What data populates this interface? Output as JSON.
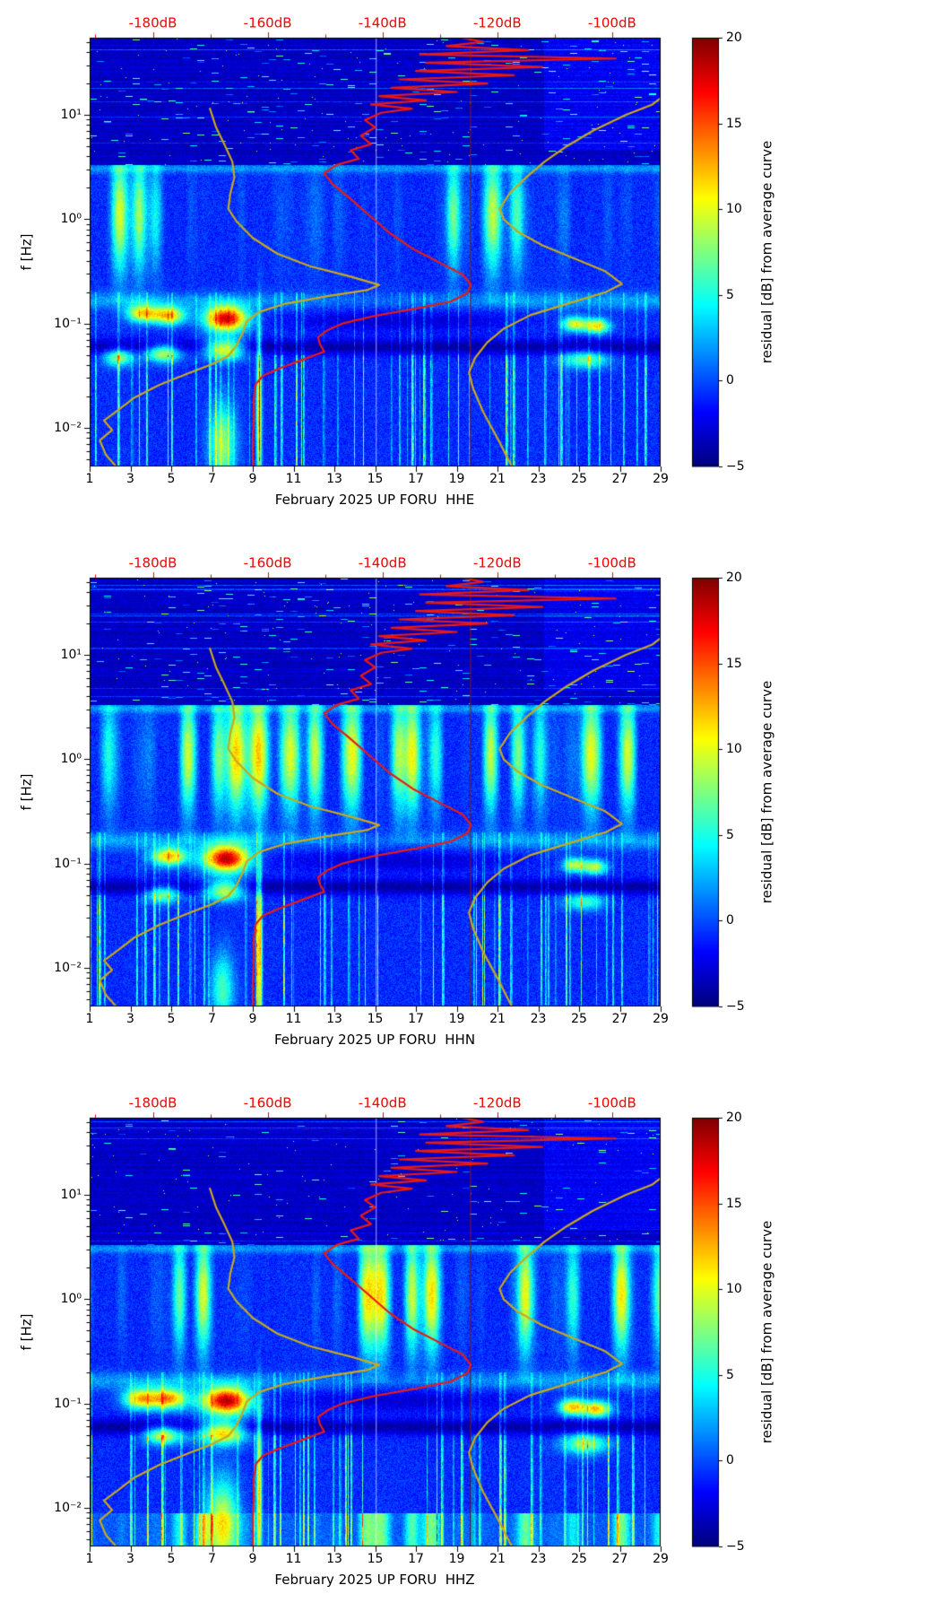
{
  "chart_data": {
    "type": "heatmap",
    "description": "Three stacked power-spectral-density residual spectrograms (jet colormap) for station UP FORU, channels HHE, HHN, HHZ, February 2025. Overlaid: red station average dB curve and yellow low/high noise model curves referenced to the red top dB axis.",
    "colors": {
      "top_axis_red": "#ff0000",
      "red_curve": "#eb1a10",
      "yellow_curve": "#c9a81b"
    },
    "axes": {
      "x_range": [
        1,
        29
      ],
      "x_ticks": [
        1,
        3,
        5,
        7,
        9,
        11,
        13,
        15,
        17,
        19,
        21,
        23,
        25,
        27,
        29
      ],
      "y_range_log10": [
        -2.37,
        1.74
      ],
      "y_ticks": [
        {
          "logf": 1,
          "label": "10¹"
        },
        {
          "logf": 0,
          "label": "10⁰"
        },
        {
          "logf": -1,
          "label": "10⁻¹"
        },
        {
          "logf": -2,
          "label": "10⁻²"
        }
      ],
      "top_axis": {
        "day_at_minus180": 4.1,
        "days_per_20db": 5.63,
        "ticks": [
          {
            "db": -180,
            "label": "-180dB"
          },
          {
            "db": -160,
            "label": "-160dB"
          },
          {
            "db": -140,
            "label": "-140dB"
          },
          {
            "db": -120,
            "label": "-120dB"
          },
          {
            "db": -100,
            "label": "-100dB"
          }
        ]
      },
      "colorbar": {
        "vmin": -5,
        "vmax": 20,
        "ticks": [
          {
            "value": 20,
            "label": "20"
          },
          {
            "value": 15,
            "label": "15"
          },
          {
            "value": 10,
            "label": "10"
          },
          {
            "value": 5,
            "label": "5"
          },
          {
            "value": 0,
            "label": "0"
          },
          {
            "value": -5,
            "label": "−5"
          }
        ]
      }
    },
    "overlays": {
      "red_average_curve": [
        [
          9.0,
          -2.37
        ],
        [
          9.0,
          -2.1
        ],
        [
          9.05,
          -1.9
        ],
        [
          9.05,
          -1.72
        ],
        [
          9.15,
          -1.58
        ],
        [
          9.5,
          -1.5
        ],
        [
          10.3,
          -1.43
        ],
        [
          11.4,
          -1.35
        ],
        [
          12.5,
          -1.27
        ],
        [
          12.3,
          -1.2
        ],
        [
          12.2,
          -1.13
        ],
        [
          12.7,
          -1.06
        ],
        [
          13.4,
          -1.0
        ],
        [
          14.9,
          -0.93
        ],
        [
          16.9,
          -0.86
        ],
        [
          18.7,
          -0.79
        ],
        [
          19.5,
          -0.71
        ],
        [
          19.7,
          -0.63
        ],
        [
          19.3,
          -0.53
        ],
        [
          18.3,
          -0.43
        ],
        [
          16.9,
          -0.29
        ],
        [
          15.7,
          -0.13
        ],
        [
          14.7,
          0.04
        ],
        [
          13.7,
          0.21
        ],
        [
          12.9,
          0.34
        ],
        [
          12.5,
          0.44
        ],
        [
          13.1,
          0.52
        ],
        [
          14.2,
          0.58
        ],
        [
          13.8,
          0.66
        ],
        [
          14.8,
          0.72
        ],
        [
          14.3,
          0.8
        ],
        [
          15.0,
          0.88
        ],
        [
          14.5,
          0.95
        ],
        [
          15.3,
          1.02
        ],
        [
          16.8,
          1.06
        ],
        [
          14.8,
          1.1
        ],
        [
          17.5,
          1.14
        ],
        [
          15.2,
          1.18
        ],
        [
          19.0,
          1.22
        ],
        [
          15.8,
          1.26
        ],
        [
          20.5,
          1.3
        ],
        [
          16.2,
          1.34
        ],
        [
          21.8,
          1.38
        ],
        [
          17.0,
          1.42
        ],
        [
          23.2,
          1.46
        ],
        [
          17.5,
          1.5
        ],
        [
          26.8,
          1.54
        ],
        [
          17.2,
          1.58
        ],
        [
          22.5,
          1.62
        ],
        [
          18.5,
          1.66
        ],
        [
          20.3,
          1.7
        ],
        [
          19.2,
          1.74
        ]
      ],
      "nlnm_curve": [
        [
          2.3,
          -2.37
        ],
        [
          1.8,
          -2.26
        ],
        [
          1.5,
          -2.12
        ],
        [
          2.1,
          -2.02
        ],
        [
          1.7,
          -1.93
        ],
        [
          2.4,
          -1.83
        ],
        [
          3.2,
          -1.71
        ],
        [
          4.4,
          -1.59
        ],
        [
          5.8,
          -1.48
        ],
        [
          7.0,
          -1.39
        ],
        [
          7.8,
          -1.31
        ],
        [
          8.2,
          -1.21
        ],
        [
          8.5,
          -1.09
        ],
        [
          8.7,
          -0.98
        ],
        [
          9.3,
          -0.89
        ],
        [
          10.6,
          -0.81
        ],
        [
          12.6,
          -0.74
        ],
        [
          14.6,
          -0.68
        ],
        [
          15.2,
          -0.63
        ],
        [
          13.8,
          -0.55
        ],
        [
          11.8,
          -0.45
        ],
        [
          10.2,
          -0.33
        ],
        [
          9.0,
          -0.18
        ],
        [
          8.2,
          -0.02
        ],
        [
          7.8,
          0.1
        ],
        [
          7.9,
          0.25
        ],
        [
          8.1,
          0.4
        ],
        [
          8.0,
          0.55
        ],
        [
          7.6,
          0.72
        ],
        [
          7.2,
          0.88
        ],
        [
          7.0,
          1.0
        ],
        [
          6.9,
          1.06
        ]
      ],
      "nhnm_curve": [
        [
          21.7,
          -2.37
        ],
        [
          21.0,
          -2.1
        ],
        [
          20.3,
          -1.85
        ],
        [
          19.8,
          -1.62
        ],
        [
          19.6,
          -1.47
        ],
        [
          19.9,
          -1.33
        ],
        [
          20.5,
          -1.18
        ],
        [
          21.3,
          -1.05
        ],
        [
          22.6,
          -0.92
        ],
        [
          24.6,
          -0.8
        ],
        [
          26.3,
          -0.7
        ],
        [
          27.1,
          -0.62
        ],
        [
          26.3,
          -0.5
        ],
        [
          24.8,
          -0.38
        ],
        [
          23.2,
          -0.25
        ],
        [
          22.0,
          -0.12
        ],
        [
          21.3,
          0.0
        ],
        [
          21.1,
          0.1
        ],
        [
          21.6,
          0.25
        ],
        [
          22.4,
          0.4
        ],
        [
          23.3,
          0.55
        ],
        [
          24.4,
          0.7
        ],
        [
          25.7,
          0.85
        ],
        [
          27.3,
          1.0
        ],
        [
          28.6,
          1.1
        ],
        [
          29.0,
          1.16
        ]
      ]
    },
    "special_lines": {
      "pale_vertical_day": 15.05,
      "dark_red_vertical_day": 19.68
    },
    "panels": [
      {
        "channel": "HHE",
        "xlabel": "February 2025 UP FORU  HHE",
        "ylabel": "f [Hz]",
        "colorbar_label": "residual [dB] from average curve",
        "seed": 11,
        "plume_amp": 4.2,
        "speckle": 0.022,
        "topright_boost": 1.2,
        "bottom_band": false,
        "hotspots": [
          [
            3.6,
            -0.9,
            0.55,
            0.06,
            12
          ],
          [
            4.9,
            -0.92,
            0.55,
            0.06,
            13
          ],
          [
            7.7,
            -0.95,
            0.75,
            0.085,
            19
          ],
          [
            2.4,
            -1.32,
            0.5,
            0.06,
            9
          ],
          [
            4.6,
            -1.28,
            0.6,
            0.06,
            11
          ],
          [
            7.6,
            -1.24,
            0.7,
            0.07,
            13
          ],
          [
            24.8,
            -1.0,
            0.42,
            0.05,
            11
          ],
          [
            25.9,
            -1.02,
            0.42,
            0.05,
            12
          ],
          [
            25.3,
            -1.34,
            0.8,
            0.06,
            8
          ],
          [
            7.5,
            -2.15,
            0.45,
            0.28,
            9
          ],
          [
            9.3,
            -1.85,
            0.09,
            0.55,
            13
          ]
        ]
      },
      {
        "channel": "HHN",
        "xlabel": "February 2025 UP FORU  HHN",
        "ylabel": "f [Hz]",
        "colorbar_label": "residual [dB] from average curve",
        "seed": 23,
        "plume_amp": 4.6,
        "speckle": 0.02,
        "topright_boost": 1.0,
        "bottom_band": false,
        "hotspots": [
          [
            4.9,
            -0.93,
            0.6,
            0.06,
            13
          ],
          [
            7.7,
            -0.95,
            0.8,
            0.09,
            20
          ],
          [
            4.6,
            -1.29,
            0.55,
            0.06,
            9
          ],
          [
            7.6,
            -1.25,
            0.7,
            0.07,
            12
          ],
          [
            24.8,
            -1.01,
            0.4,
            0.05,
            10
          ],
          [
            25.8,
            -1.03,
            0.4,
            0.05,
            10
          ],
          [
            25.3,
            -1.36,
            0.7,
            0.06,
            7
          ],
          [
            7.5,
            -2.2,
            0.4,
            0.25,
            7
          ],
          [
            9.3,
            -1.85,
            0.09,
            0.55,
            13
          ]
        ]
      },
      {
        "channel": "HHZ",
        "xlabel": "February 2025 UP FORU  HHZ",
        "ylabel": "f [Hz]",
        "colorbar_label": "residual [dB] from average curve",
        "seed": 37,
        "plume_amp": 5.2,
        "speckle": 0.012,
        "topright_boost": 1.2,
        "bottom_band": true,
        "hotspots": [
          [
            3.5,
            -0.95,
            0.6,
            0.07,
            13
          ],
          [
            4.9,
            -0.95,
            0.6,
            0.07,
            14
          ],
          [
            7.7,
            -0.97,
            0.85,
            0.09,
            20
          ],
          [
            4.6,
            -1.3,
            0.65,
            0.06,
            11
          ],
          [
            7.5,
            -1.27,
            0.8,
            0.08,
            14
          ],
          [
            24.7,
            -1.03,
            0.45,
            0.055,
            13
          ],
          [
            25.9,
            -1.05,
            0.45,
            0.055,
            13
          ],
          [
            25.3,
            -1.38,
            0.8,
            0.07,
            9
          ],
          [
            7.5,
            -2.15,
            0.55,
            0.3,
            11
          ],
          [
            9.3,
            -1.85,
            0.09,
            0.55,
            13
          ]
        ]
      }
    ]
  }
}
